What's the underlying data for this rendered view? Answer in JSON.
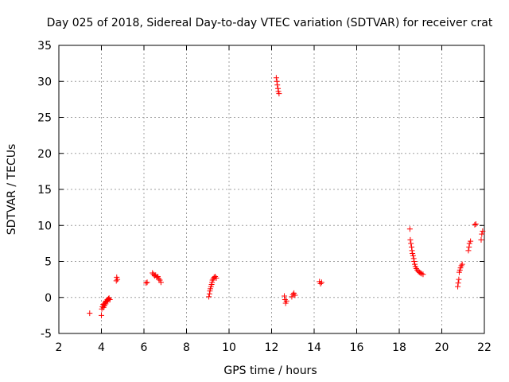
{
  "chart_data": {
    "type": "scatter",
    "title": "Day 025 of 2018, Sidereal Day-to-day VTEC variation (SDTVAR) for receiver crat",
    "xlabel": "GPS time / hours",
    "ylabel": "SDTVAR / TECUs",
    "xlim": [
      2,
      22
    ],
    "ylim": [
      -5,
      35
    ],
    "x_ticks": [
      2,
      4,
      6,
      8,
      10,
      12,
      14,
      16,
      18,
      20,
      22
    ],
    "y_ticks": [
      -5,
      0,
      5,
      10,
      15,
      20,
      25,
      30,
      35
    ],
    "grid": true,
    "marker": "+",
    "marker_color": "#ff0000",
    "series": [
      {
        "name": "SDTVAR",
        "points": [
          [
            3.45,
            -2.2
          ],
          [
            4.0,
            -2.5
          ],
          [
            4.02,
            -1.6
          ],
          [
            4.05,
            -1.3
          ],
          [
            4.08,
            -1.0
          ],
          [
            4.1,
            -1.4
          ],
          [
            4.12,
            -0.9
          ],
          [
            4.15,
            -1.1
          ],
          [
            4.18,
            -0.7
          ],
          [
            4.2,
            -0.9
          ],
          [
            4.22,
            -0.5
          ],
          [
            4.25,
            -0.6
          ],
          [
            4.28,
            -0.3
          ],
          [
            4.3,
            -0.4
          ],
          [
            4.33,
            -0.2
          ],
          [
            4.36,
            -0.1
          ],
          [
            4.4,
            -0.3
          ],
          [
            4.7,
            2.3
          ],
          [
            4.72,
            2.8
          ],
          [
            4.75,
            2.5
          ],
          [
            6.1,
            2.0
          ],
          [
            6.15,
            2.1
          ],
          [
            6.4,
            3.4
          ],
          [
            6.45,
            3.2
          ],
          [
            6.5,
            3.0
          ],
          [
            6.55,
            3.1
          ],
          [
            6.6,
            2.8
          ],
          [
            6.65,
            2.9
          ],
          [
            6.7,
            2.6
          ],
          [
            6.75,
            2.4
          ],
          [
            6.8,
            2.1
          ],
          [
            9.05,
            0.1
          ],
          [
            9.08,
            0.5
          ],
          [
            9.1,
            0.9
          ],
          [
            9.12,
            1.2
          ],
          [
            9.15,
            1.5
          ],
          [
            9.18,
            1.8
          ],
          [
            9.2,
            2.1
          ],
          [
            9.22,
            2.4
          ],
          [
            9.26,
            2.6
          ],
          [
            9.3,
            2.8
          ],
          [
            9.35,
            2.9
          ],
          [
            9.4,
            2.7
          ],
          [
            12.22,
            30.5
          ],
          [
            12.25,
            30.0
          ],
          [
            12.27,
            29.5
          ],
          [
            12.3,
            29.0
          ],
          [
            12.32,
            28.6
          ],
          [
            12.35,
            28.3
          ],
          [
            12.6,
            0.2
          ],
          [
            12.63,
            -0.3
          ],
          [
            12.66,
            -0.8
          ],
          [
            12.7,
            -0.5
          ],
          [
            12.95,
            0.1
          ],
          [
            13.0,
            0.4
          ],
          [
            13.05,
            0.6
          ],
          [
            13.1,
            0.3
          ],
          [
            14.25,
            2.2
          ],
          [
            14.3,
            1.9
          ],
          [
            14.35,
            2.1
          ],
          [
            18.5,
            9.5
          ],
          [
            18.52,
            8.0
          ],
          [
            18.55,
            7.5
          ],
          [
            18.58,
            7.0
          ],
          [
            18.6,
            6.5
          ],
          [
            18.62,
            6.1
          ],
          [
            18.65,
            5.8
          ],
          [
            18.68,
            5.4
          ],
          [
            18.7,
            5.0
          ],
          [
            18.73,
            4.6
          ],
          [
            18.76,
            4.3
          ],
          [
            18.8,
            4.0
          ],
          [
            18.85,
            3.8
          ],
          [
            18.9,
            3.6
          ],
          [
            18.95,
            3.5
          ],
          [
            19.0,
            3.4
          ],
          [
            19.05,
            3.3
          ],
          [
            19.12,
            3.2
          ],
          [
            20.75,
            1.5
          ],
          [
            20.77,
            2.0
          ],
          [
            20.8,
            2.5
          ],
          [
            20.82,
            3.5
          ],
          [
            20.85,
            3.8
          ],
          [
            20.88,
            4.1
          ],
          [
            20.92,
            4.4
          ],
          [
            20.96,
            4.6
          ],
          [
            21.25,
            6.5
          ],
          [
            21.28,
            7.0
          ],
          [
            21.3,
            7.5
          ],
          [
            21.35,
            7.8
          ],
          [
            21.55,
            10.1
          ],
          [
            21.6,
            10.2
          ],
          [
            21.85,
            8.0
          ],
          [
            21.88,
            8.8
          ],
          [
            21.92,
            9.2
          ]
        ]
      }
    ]
  }
}
